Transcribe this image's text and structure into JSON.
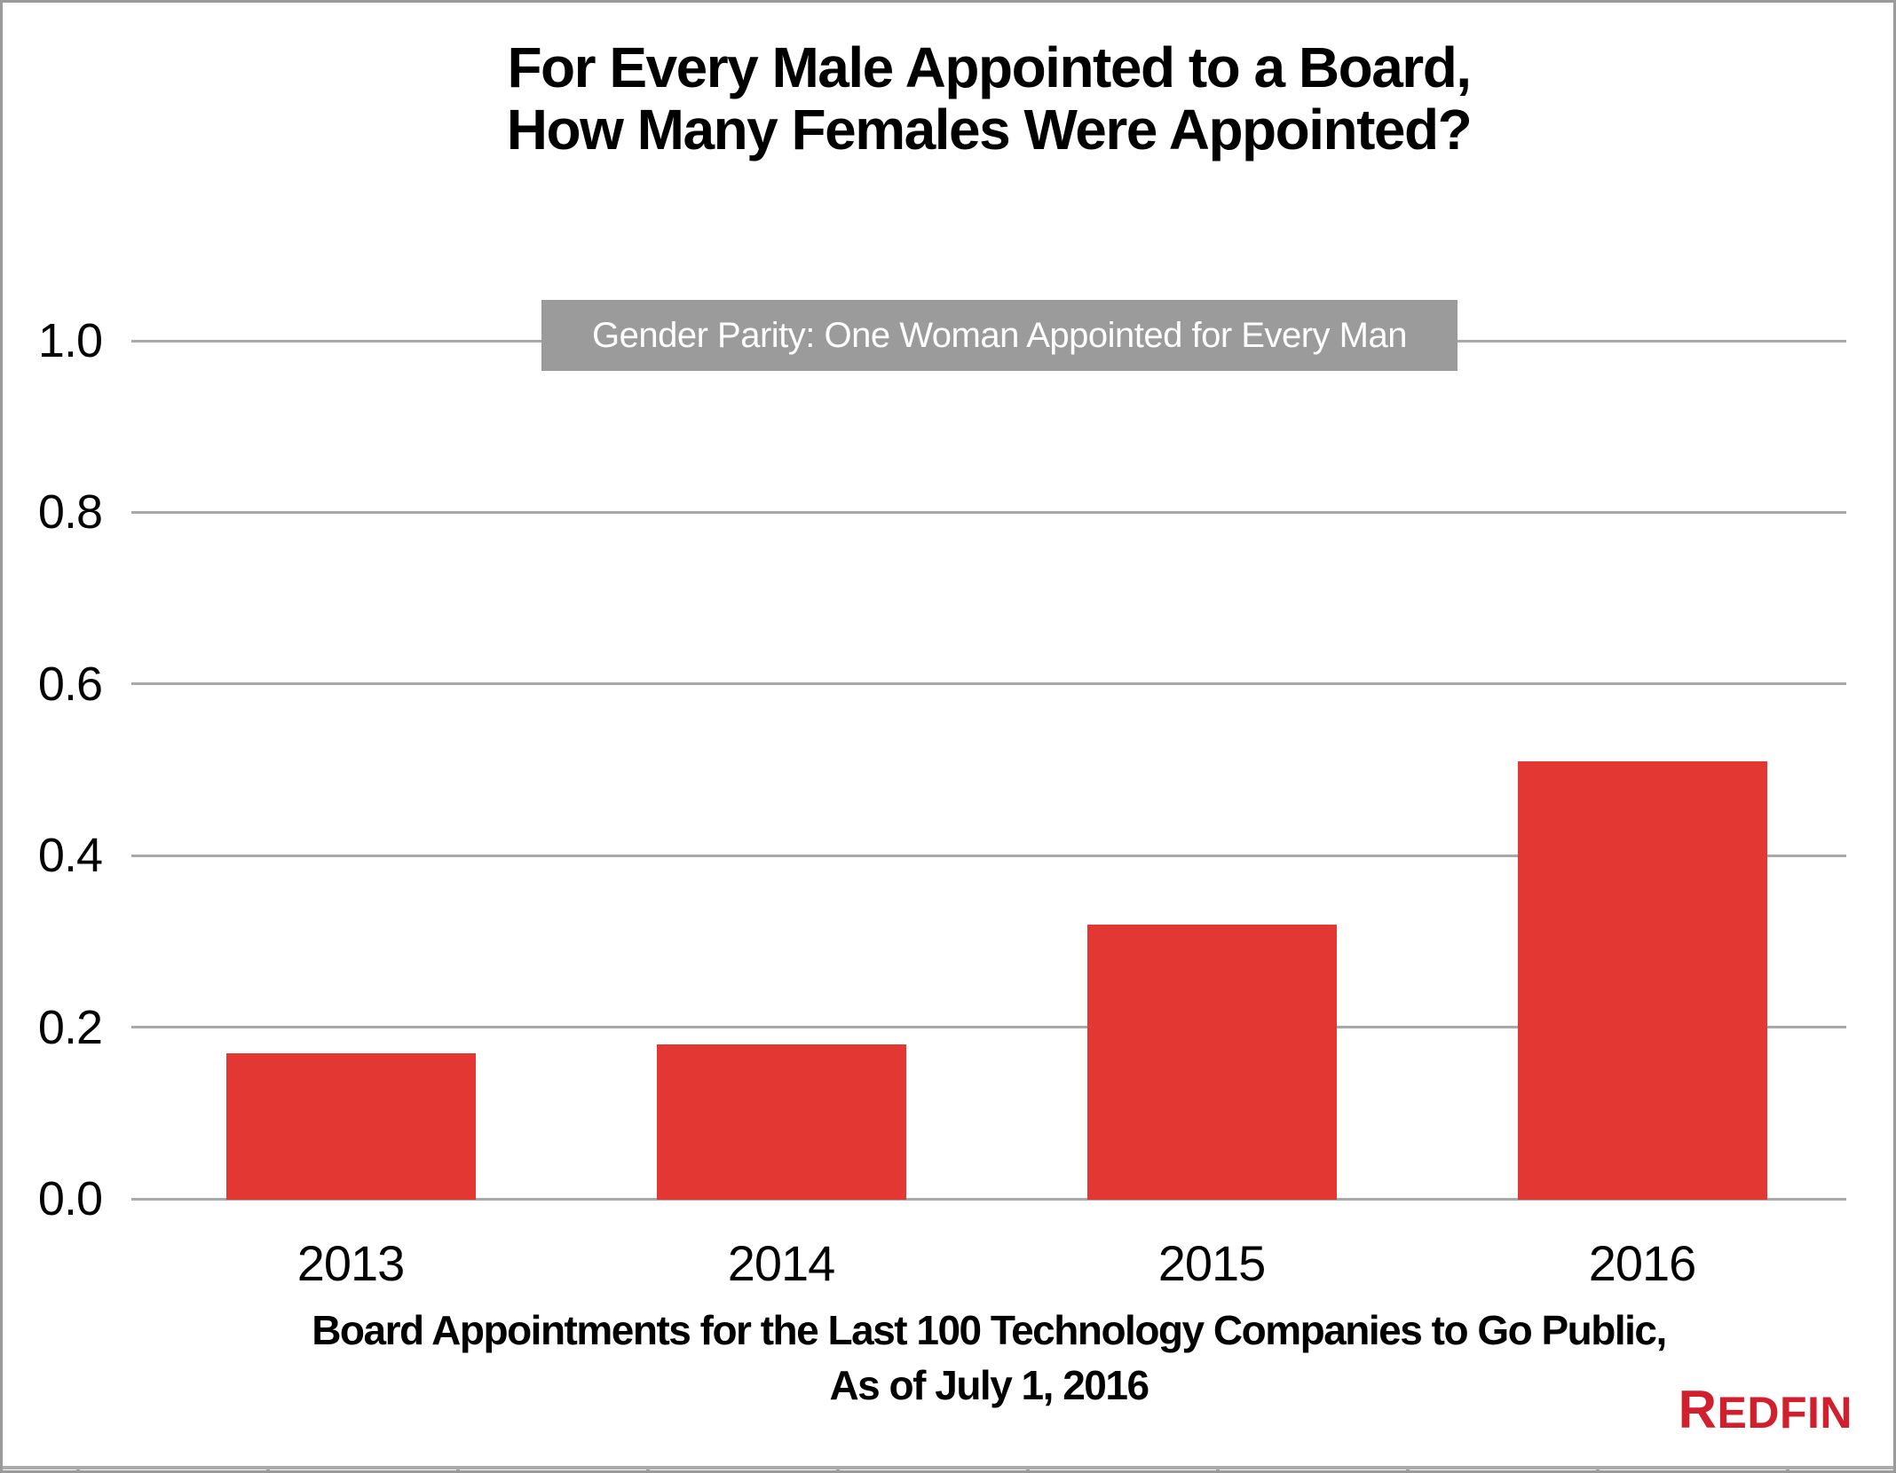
{
  "page": {
    "background": "#FFFFFF",
    "border_color": "#9A9A9A"
  },
  "chart_data": {
    "type": "bar",
    "title": "For Every Male Appointed to a Board,\nHow Many Females Were Appointed?",
    "categories": [
      "2013",
      "2014",
      "2015",
      "2016"
    ],
    "values": [
      0.17,
      0.18,
      0.32,
      0.51
    ],
    "xlabel": "Board Appointments for the Last 100 Technology Companies to Go Public,\nAs of July 1, 2016",
    "ylabel": "",
    "ylim": [
      0,
      1.0
    ],
    "ytick_labels": [
      "1.0",
      "0.8",
      "0.6",
      "0.4",
      "0.2",
      "0.0"
    ],
    "grid": true,
    "gridline_color": "#A9A9A9",
    "bar_color": "#E23733",
    "legend": null,
    "annotation": {
      "text": "Gender Parity: One Woman Appointed for Every Man",
      "y": 1.0,
      "bg_color": "#9B9B9B",
      "text_color": "#FFFFFF"
    }
  },
  "branding": {
    "logo_text": "REDFIN",
    "logo_color": "#D21F2D"
  }
}
